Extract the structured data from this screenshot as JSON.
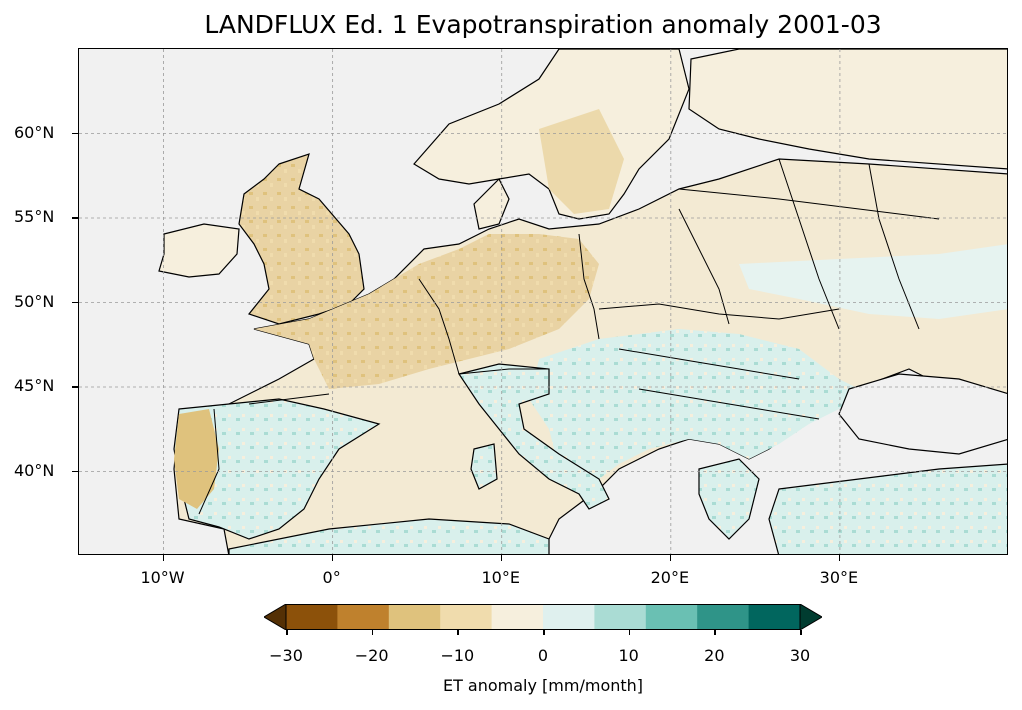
{
  "title": "LANDFLUX Ed. 1 Evapotranspiration anomaly 2001-03",
  "map": {
    "projection": "PlateCarree",
    "lon_range": [
      -15,
      40
    ],
    "lat_range": [
      35,
      65
    ],
    "gridlines": true,
    "gridline_style": "dashed",
    "ocean_color": "#f1f1f1",
    "coastlines": true,
    "borders": true,
    "x_ticks": [
      "10°W",
      "0°",
      "10°E",
      "20°E",
      "30°E"
    ],
    "x_tick_values": [
      -10,
      0,
      10,
      20,
      30
    ],
    "y_ticks": [
      "60°N",
      "55°N",
      "50°N",
      "45°N",
      "40°N"
    ],
    "y_tick_values": [
      60,
      55,
      50,
      45,
      40
    ]
  },
  "colorbar": {
    "label": "ET anomaly [mm/month]",
    "ticks": [
      "−30",
      "−20",
      "−10",
      "0",
      "10",
      "20",
      "30"
    ],
    "tick_values": [
      -30,
      -20,
      -10,
      0,
      10,
      20,
      30
    ],
    "levels": [
      -30,
      -25,
      -20,
      -15,
      -10,
      -5,
      0,
      5,
      10,
      15,
      20,
      25,
      30
    ],
    "colors": [
      "#543005",
      "#8c510a",
      "#bf812d",
      "#dfc27d",
      "#f0dcad",
      "#f6efdd",
      "#dff0ee",
      "#aadcd4",
      "#6ac0b3",
      "#2f9488",
      "#01665e",
      "#003c30"
    ],
    "extend": "both",
    "colormap": "BrBG"
  }
}
